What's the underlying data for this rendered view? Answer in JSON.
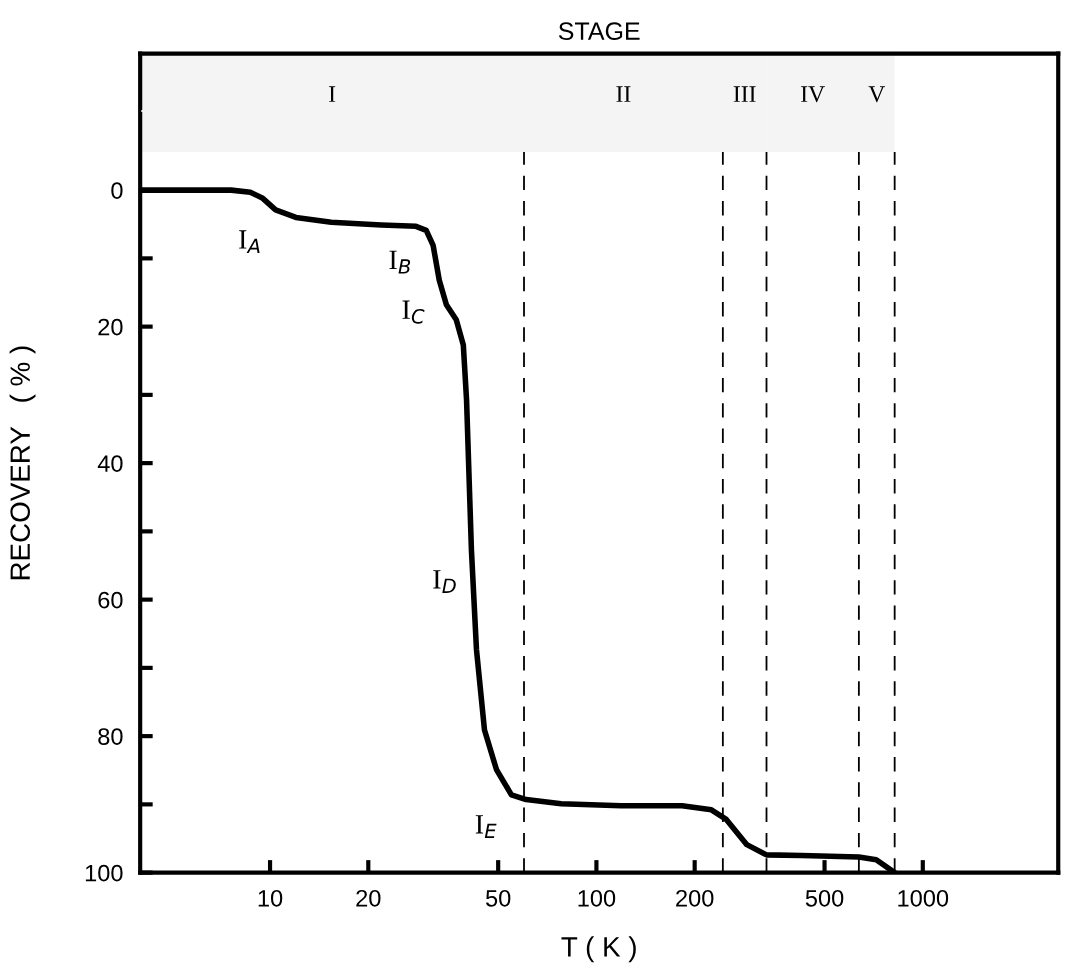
{
  "chart_data": {
    "type": "line",
    "title": "STAGE",
    "xlabel": "T ( K )",
    "ylabel": "RECOVERY   ( % )",
    "log": "x",
    "xlim": [
      4,
      2600
    ],
    "xticks": [
      10,
      20,
      50,
      100,
      200,
      500,
      1000
    ],
    "ylim": [
      100,
      -20
    ],
    "yticks": [
      0,
      {
        "value": 10,
        "label": null
      },
      20,
      {
        "value": 30,
        "label": null
      },
      40,
      {
        "value": 50,
        "label": null
      },
      60,
      {
        "value": 70,
        "label": null
      },
      80,
      {
        "value": 90,
        "label": null
      },
      100
    ],
    "grid": false,
    "legend": false,
    "marker": "none",
    "line_style": "solid",
    "x": [
      4,
      7.6,
      8.7,
      9.5,
      10.4,
      12.0,
      15.4,
      21.9,
      28.0,
      30.1,
      31.6,
      33.0,
      34.7,
      37.2,
      39.1,
      40.0,
      41.4,
      42.9,
      45.4,
      49.4,
      54.9,
      60.9,
      78,
      119,
      183,
      225,
      250,
      289,
      332,
      425,
      637,
      720,
      820
    ],
    "series": [
      {
        "color": "#000000",
        "values": [
          0,
          0,
          0.3,
          1.2,
          2.9,
          4.0,
          4.7,
          5.1,
          5.3,
          5.9,
          8.1,
          13.2,
          16.8,
          19.0,
          22.7,
          30.7,
          52.7,
          67.3,
          79.1,
          84.9,
          88.6,
          89.3,
          89.9,
          90.2,
          90.2,
          90.8,
          92.2,
          95.9,
          97.4,
          97.5,
          97.7,
          98.1,
          100
        ]
      }
    ],
    "ref_lines": [
      {
        "axis": "x",
        "value": 60,
        "label": null,
        "color": "#000000",
        "line_style": "dashed"
      },
      {
        "axis": "x",
        "value": 244,
        "label": null,
        "color": "#000000",
        "line_style": "dashed"
      },
      {
        "axis": "x",
        "value": 332,
        "label": null,
        "color": "#000000",
        "line_style": "dashed"
      },
      {
        "axis": "x",
        "value": 637,
        "label": null,
        "color": "#000000",
        "line_style": "dashed"
      },
      {
        "axis": "x",
        "value": 820,
        "label": null,
        "color": "#000000",
        "line_style": "dashed"
      }
    ],
    "bands": [
      {
        "axis": "x",
        "from": 4,
        "to": 60,
        "label": "I",
        "color": "#f4f4f4"
      },
      {
        "axis": "x",
        "from": 60,
        "to": 244,
        "label": "II",
        "color": "#f4f4f4"
      },
      {
        "axis": "x",
        "from": 244,
        "to": 332,
        "label": "III",
        "color": "#f4f4f4"
      },
      {
        "axis": "x",
        "from": 332,
        "to": 637,
        "label": "IV",
        "color": "#f4f4f4"
      },
      {
        "axis": "x",
        "from": 637,
        "to": 820,
        "label": "V",
        "color": "#f4f4f4"
      }
    ],
    "annotations": [
      {
        "text": "I$_{A}$",
        "x": 10.4,
        "y": 2.9
      },
      {
        "text": "I$_{B}$",
        "x": 30.1,
        "y": 5.9
      },
      {
        "text": "I$_{C}$",
        "x": 33.0,
        "y": 13.2
      },
      {
        "text": "I$_{D}$",
        "x": 41.4,
        "y": 52.7
      },
      {
        "text": "I$_{E}$",
        "x": 54.9,
        "y": 88.6
      }
    ]
  }
}
